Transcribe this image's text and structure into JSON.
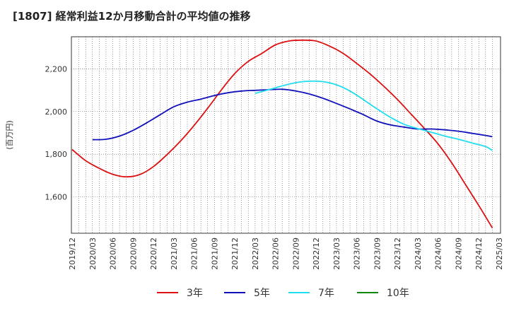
{
  "chart_data": {
    "type": "line",
    "title": "[1807]  経常利益12か月移動合計の平均値の推移",
    "ylabel": "(百万円)",
    "xlabel": "",
    "ylim": [
      1430,
      2350
    ],
    "yticks": [
      1600,
      1800,
      2000,
      2200
    ],
    "ytick_labels": [
      "1,600",
      "1,800",
      "2,000",
      "2,200"
    ],
    "x_ticks": [
      "2019/12",
      "2020/03",
      "2020/06",
      "2020/09",
      "2020/12",
      "2021/03",
      "2021/06",
      "2021/09",
      "2021/12",
      "2022/03",
      "2022/06",
      "2022/09",
      "2022/12",
      "2023/03",
      "2023/06",
      "2023/09",
      "2023/12",
      "2024/03",
      "2024/06",
      "2024/09",
      "2024/12",
      "2025/03"
    ],
    "grid": true,
    "legend_position": "bottom",
    "series": [
      {
        "name": "3年",
        "color": "#dd1111",
        "points": [
          [
            "2019/12",
            1822
          ],
          [
            "2020/02",
            1770
          ],
          [
            "2020/04",
            1734
          ],
          [
            "2020/06",
            1706
          ],
          [
            "2020/08",
            1694
          ],
          [
            "2020/10",
            1705
          ],
          [
            "2020/12",
            1742
          ],
          [
            "2021/02",
            1798
          ],
          [
            "2021/04",
            1862
          ],
          [
            "2021/06",
            1935
          ],
          [
            "2021/08",
            2015
          ],
          [
            "2021/10",
            2100
          ],
          [
            "2021/12",
            2178
          ],
          [
            "2022/02",
            2235
          ],
          [
            "2022/04",
            2272
          ],
          [
            "2022/06",
            2312
          ],
          [
            "2022/08",
            2330
          ],
          [
            "2022/10",
            2334
          ],
          [
            "2022/12",
            2330
          ],
          [
            "2023/02",
            2306
          ],
          [
            "2023/04",
            2272
          ],
          [
            "2023/06",
            2225
          ],
          [
            "2023/08",
            2175
          ],
          [
            "2023/10",
            2118
          ],
          [
            "2023/12",
            2056
          ],
          [
            "2024/02",
            1988
          ],
          [
            "2024/04",
            1920
          ],
          [
            "2024/06",
            1848
          ],
          [
            "2024/08",
            1760
          ],
          [
            "2024/10",
            1660
          ],
          [
            "2024/12",
            1560
          ],
          [
            "2025/02",
            1455
          ]
        ]
      },
      {
        "name": "5年",
        "color": "#1111bb",
        "points": [
          [
            "2020/03",
            1868
          ],
          [
            "2020/05",
            1870
          ],
          [
            "2020/07",
            1885
          ],
          [
            "2020/09",
            1912
          ],
          [
            "2020/11",
            1947
          ],
          [
            "2021/01",
            1985
          ],
          [
            "2021/03",
            2022
          ],
          [
            "2021/05",
            2044
          ],
          [
            "2021/07",
            2058
          ],
          [
            "2021/09",
            2075
          ],
          [
            "2021/11",
            2088
          ],
          [
            "2022/01",
            2096
          ],
          [
            "2022/03",
            2099
          ],
          [
            "2022/05",
            2102
          ],
          [
            "2022/07",
            2104
          ],
          [
            "2022/09",
            2096
          ],
          [
            "2022/11",
            2082
          ],
          [
            "2023/01",
            2062
          ],
          [
            "2023/03",
            2038
          ],
          [
            "2023/05",
            2012
          ],
          [
            "2023/07",
            1985
          ],
          [
            "2023/09",
            1955
          ],
          [
            "2023/11",
            1937
          ],
          [
            "2024/01",
            1927
          ],
          [
            "2024/03",
            1918
          ],
          [
            "2024/05",
            1918
          ],
          [
            "2024/07",
            1914
          ],
          [
            "2024/09",
            1908
          ],
          [
            "2024/11",
            1898
          ],
          [
            "2025/01",
            1888
          ],
          [
            "2025/02",
            1882
          ]
        ]
      },
      {
        "name": "7年",
        "color": "#22ddee",
        "points": [
          [
            "2022/03",
            2085
          ],
          [
            "2022/05",
            2102
          ],
          [
            "2022/07",
            2120
          ],
          [
            "2022/09",
            2135
          ],
          [
            "2022/11",
            2142
          ],
          [
            "2023/01",
            2140
          ],
          [
            "2023/03",
            2125
          ],
          [
            "2023/05",
            2096
          ],
          [
            "2023/07",
            2055
          ],
          [
            "2023/09",
            2012
          ],
          [
            "2023/11",
            1972
          ],
          [
            "2024/01",
            1940
          ],
          [
            "2024/03",
            1920
          ],
          [
            "2024/05",
            1903
          ],
          [
            "2024/07",
            1885
          ],
          [
            "2024/09",
            1870
          ],
          [
            "2024/11",
            1853
          ],
          [
            "2025/01",
            1836
          ],
          [
            "2025/02",
            1818
          ]
        ]
      },
      {
        "name": "10年",
        "color": "#118811",
        "points": []
      }
    ]
  }
}
